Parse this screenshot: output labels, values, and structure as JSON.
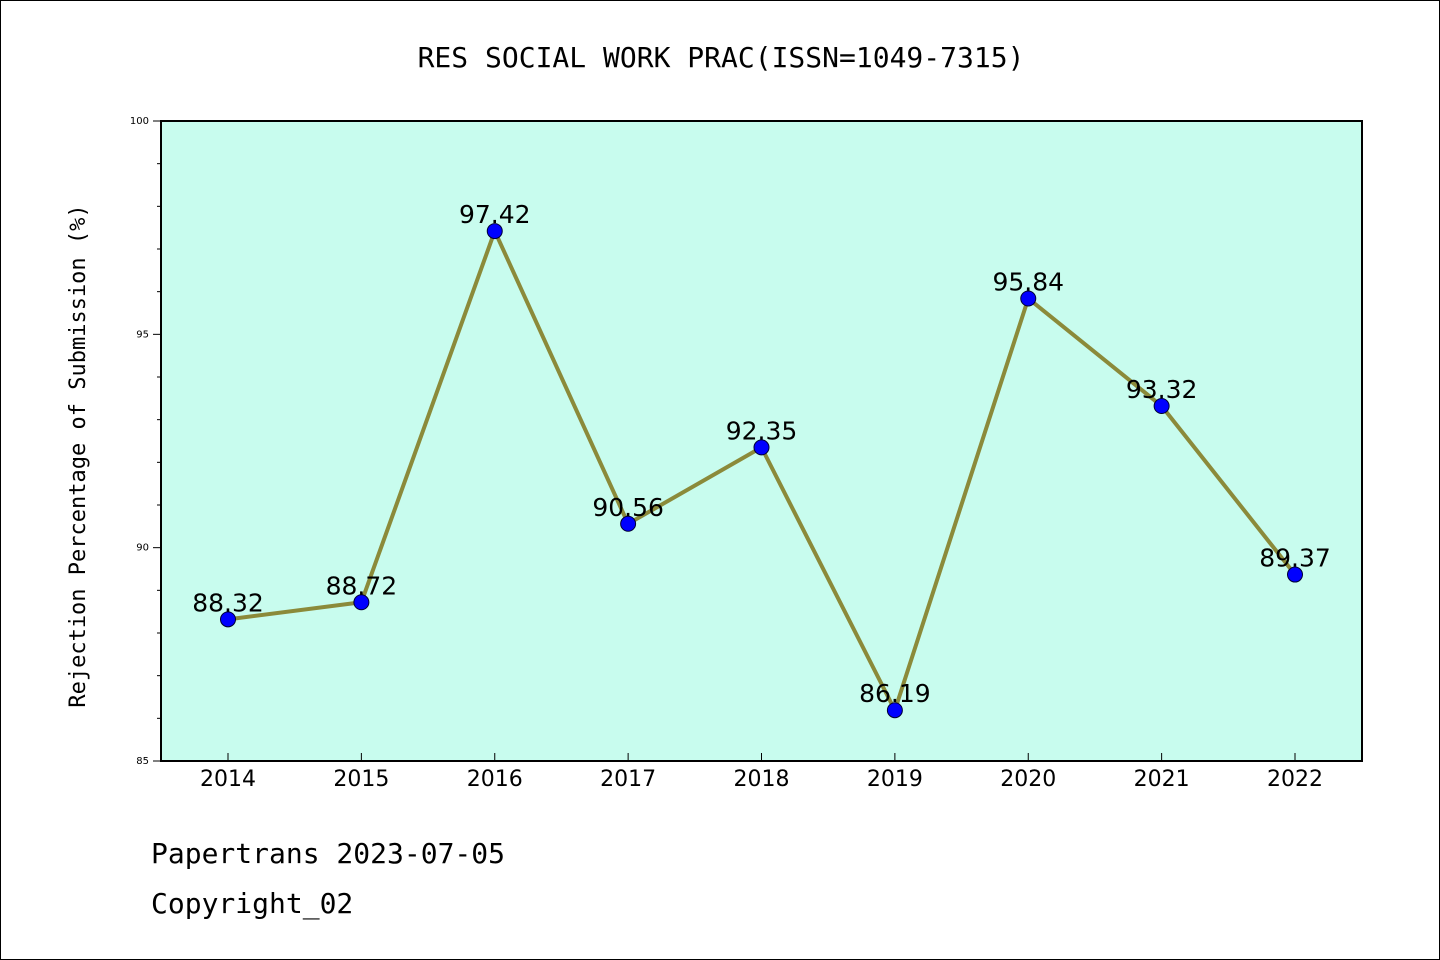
{
  "chart_data": {
    "type": "line",
    "title": "RES SOCIAL WORK PRAC(ISSN=1049-7315)",
    "xlabel": "",
    "ylabel": "Rejection Percentage of Submission (%)",
    "categories": [
      "2014",
      "2015",
      "2016",
      "2017",
      "2018",
      "2019",
      "2020",
      "2021",
      "2022"
    ],
    "series": [
      {
        "values": [
          88.32,
          88.72,
          97.42,
          90.56,
          92.35,
          86.19,
          95.84,
          93.32,
          89.37
        ]
      }
    ],
    "data_labels": [
      "88.32",
      "88.72",
      "97.42",
      "90.56",
      "92.35",
      "86.19",
      "95.84",
      "93.32",
      "89.37"
    ],
    "ylim": [
      85,
      100
    ],
    "yticks": [
      85,
      90,
      95,
      100
    ],
    "grid": false,
    "colors": {
      "plot_background": "#c8fcee",
      "line": "#8b8a3a",
      "marker": "#0000ff"
    }
  },
  "footer": {
    "line1": "Papertrans 2023-07-05",
    "line2": "Copyright_02"
  }
}
